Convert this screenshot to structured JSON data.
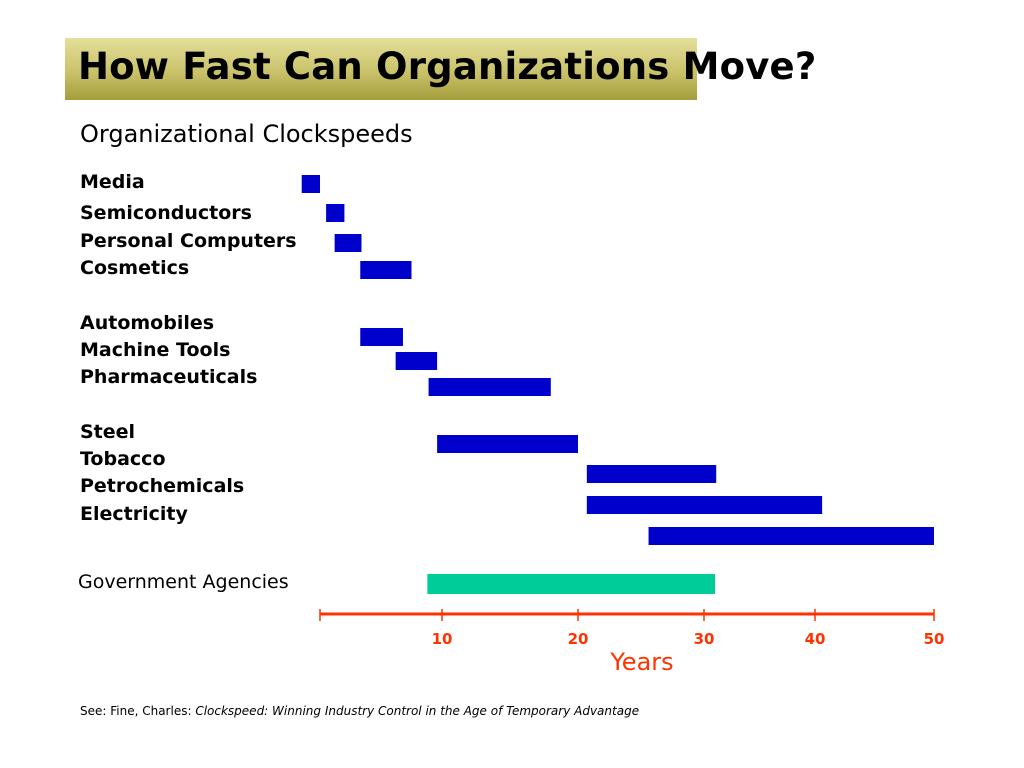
{
  "title": "How Fast Can Organizations Move?",
  "chart_data": {
    "type": "bar",
    "orientation": "horizontal-range",
    "title": "Organizational Clockspeeds",
    "xlabel": "Years",
    "xticks": [
      10,
      20,
      30,
      40,
      50
    ],
    "xlim": [
      0,
      50
    ],
    "categories": [
      "Media",
      "Semiconductors",
      "Personal Computers",
      "Cosmetics",
      "Automobiles",
      "Machine Tools",
      "Pharmaceuticals",
      "Steel",
      "Tobacco",
      "Petrochemicals",
      "Electricity",
      "Government Agencies"
    ],
    "ranges": [
      [
        -1.5,
        0
      ],
      [
        0.5,
        2
      ],
      [
        1.2,
        3.4
      ],
      [
        3.3,
        7.5
      ],
      [
        3.3,
        6.8
      ],
      [
        6.2,
        9.6
      ],
      [
        8.9,
        18
      ],
      [
        9.6,
        20
      ],
      [
        20.7,
        31.1
      ],
      [
        20.7,
        40.6
      ],
      [
        25.6,
        50
      ],
      [
        8.8,
        31
      ]
    ],
    "colors": {
      "industry": "#0000cc",
      "government": "#00cc99",
      "axis": "#ff3300"
    }
  },
  "footnote": {
    "prefix": "See: Fine, Charles: ",
    "book": "Clockspeed: Winning Industry Control in the Age of Temporary Advantage"
  }
}
